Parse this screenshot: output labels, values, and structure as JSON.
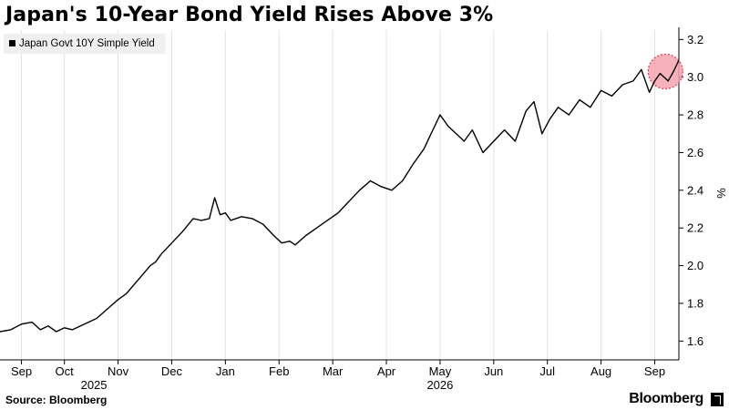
{
  "title": "Japan's 10-Year Bond Yield Rises Above 3%",
  "footer": {
    "source": "Source: Bloomberg",
    "brand": "Bloomberg"
  },
  "chart_data": {
    "type": "line",
    "title": "Japan's 10-Year Bond Yield Rises Above 3%",
    "ylabel": "%",
    "ylim": [
      1.5,
      3.25
    ],
    "y_ticks": [
      1.6,
      1.8,
      2.0,
      2.2,
      2.4,
      2.6,
      2.8,
      3.0,
      3.2
    ],
    "y_tick_labels": [
      "1.6",
      "1.8",
      "2.0",
      "2.2",
      "2.4",
      "2.6",
      "2.8",
      "3.0",
      "3.2"
    ],
    "x_range": [
      0,
      12.65
    ],
    "x_ticks": [
      {
        "label": "Sep",
        "x": 0.4
      },
      {
        "label": "Oct",
        "x": 1.2
      },
      {
        "label": "Nov",
        "x": 2.2
      },
      {
        "label": "Dec",
        "x": 3.2
      },
      {
        "label": "Jan",
        "x": 4.2
      },
      {
        "label": "Feb",
        "x": 5.2
      },
      {
        "label": "Mar",
        "x": 6.2
      },
      {
        "label": "Apr",
        "x": 7.2
      },
      {
        "label": "May",
        "x": 8.2
      },
      {
        "label": "Jun",
        "x": 9.2
      },
      {
        "label": "Jul",
        "x": 10.2
      },
      {
        "label": "Aug",
        "x": 11.2
      },
      {
        "label": "Sep",
        "x": 12.2
      }
    ],
    "year_labels": [
      {
        "label": "2025",
        "x": 1.75
      },
      {
        "label": "2026",
        "x": 8.2
      }
    ],
    "grid": true,
    "legend": {
      "position": "top-left"
    },
    "series": [
      {
        "name": "Japan Govt 10Y Simple Yield",
        "color": "#000000",
        "x": [
          0,
          0.2,
          0.4,
          0.6,
          0.75,
          0.9,
          1.05,
          1.2,
          1.35,
          1.5,
          1.65,
          1.8,
          2.0,
          2.2,
          2.35,
          2.5,
          2.65,
          2.8,
          2.9,
          3.0,
          3.2,
          3.4,
          3.6,
          3.75,
          3.9,
          4.0,
          4.1,
          4.2,
          4.3,
          4.5,
          4.7,
          4.9,
          5.1,
          5.25,
          5.4,
          5.5,
          5.7,
          5.9,
          6.1,
          6.3,
          6.5,
          6.7,
          6.9,
          7.1,
          7.3,
          7.5,
          7.7,
          7.9,
          8.0,
          8.1,
          8.2,
          8.35,
          8.5,
          8.65,
          8.8,
          9.0,
          9.2,
          9.4,
          9.6,
          9.8,
          9.95,
          10.1,
          10.25,
          10.4,
          10.6,
          10.8,
          11.0,
          11.2,
          11.4,
          11.6,
          11.8,
          11.95,
          12.1,
          12.2,
          12.3,
          12.45,
          12.55,
          12.65
        ],
        "values": [
          1.65,
          1.66,
          1.69,
          1.7,
          1.66,
          1.68,
          1.65,
          1.67,
          1.66,
          1.68,
          1.7,
          1.72,
          1.77,
          1.82,
          1.85,
          1.9,
          1.95,
          2.0,
          2.02,
          2.06,
          2.12,
          2.18,
          2.25,
          2.24,
          2.25,
          2.36,
          2.27,
          2.28,
          2.24,
          2.26,
          2.25,
          2.22,
          2.16,
          2.12,
          2.13,
          2.11,
          2.16,
          2.2,
          2.24,
          2.28,
          2.34,
          2.4,
          2.45,
          2.42,
          2.4,
          2.45,
          2.54,
          2.62,
          2.68,
          2.74,
          2.8,
          2.74,
          2.7,
          2.66,
          2.72,
          2.6,
          2.66,
          2.72,
          2.66,
          2.82,
          2.87,
          2.7,
          2.78,
          2.84,
          2.8,
          2.88,
          2.84,
          2.93,
          2.9,
          2.96,
          2.98,
          3.04,
          2.92,
          2.98,
          3.02,
          2.98,
          3.03,
          3.09
        ]
      }
    ],
    "annotation": {
      "type": "circle-highlight",
      "x": 12.4,
      "y": 3.03,
      "color": "#e53e54"
    }
  }
}
